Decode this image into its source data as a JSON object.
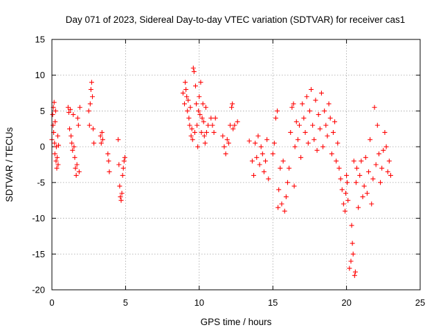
{
  "chart_data": {
    "type": "scatter",
    "title": "Day 071 of 2023, Sidereal Day-to-day VTEC variation (SDTVAR) for receiver cas1",
    "xlabel": "GPS time / hours",
    "ylabel": "SDTVAR / TECUs",
    "xlim": [
      0,
      25
    ],
    "ylim": [
      -20,
      15
    ],
    "x_ticks": [
      0,
      5,
      10,
      15,
      20,
      25
    ],
    "x_tick_labels": [
      "0",
      "5",
      "10",
      "15",
      "20",
      "25"
    ],
    "y_ticks": [
      -20,
      -15,
      -10,
      -5,
      0,
      5,
      10,
      15
    ],
    "y_tick_labels": [
      "-20",
      "-15",
      "-10",
      "-5",
      "0",
      "5",
      "10",
      "15"
    ],
    "grid": true,
    "marker": "+",
    "marker_color": "#ff0000",
    "series": [
      {
        "name": "cas1",
        "points": [
          [
            0.0,
            1.0
          ],
          [
            0.05,
            4.5
          ],
          [
            0.08,
            3.0
          ],
          [
            0.1,
            5.5
          ],
          [
            0.12,
            2.0
          ],
          [
            0.15,
            6.2
          ],
          [
            0.18,
            0.5
          ],
          [
            0.2,
            -1.0
          ],
          [
            0.22,
            3.5
          ],
          [
            0.25,
            5.0
          ],
          [
            0.28,
            -2.0
          ],
          [
            0.3,
            0.0
          ],
          [
            0.33,
            -3.0
          ],
          [
            0.36,
            -1.5
          ],
          [
            0.4,
            1.5
          ],
          [
            0.42,
            -2.5
          ],
          [
            0.45,
            0.2
          ],
          [
            1.1,
            5.5
          ],
          [
            1.15,
            4.8
          ],
          [
            1.2,
            2.5
          ],
          [
            1.25,
            5.2
          ],
          [
            1.3,
            1.5
          ],
          [
            1.35,
            0.5
          ],
          [
            1.4,
            -0.5
          ],
          [
            1.45,
            4.5
          ],
          [
            1.5,
            0.0
          ],
          [
            1.55,
            -1.5
          ],
          [
            1.6,
            -3.0
          ],
          [
            1.65,
            -4.0
          ],
          [
            1.7,
            -2.5
          ],
          [
            1.75,
            4.0
          ],
          [
            1.8,
            3.0
          ],
          [
            1.85,
            -3.5
          ],
          [
            1.9,
            5.5
          ],
          [
            2.5,
            5.0
          ],
          [
            2.55,
            3.0
          ],
          [
            2.6,
            6.0
          ],
          [
            2.65,
            8.0
          ],
          [
            2.7,
            9.0
          ],
          [
            2.75,
            7.0
          ],
          [
            2.8,
            2.5
          ],
          [
            2.85,
            0.5
          ],
          [
            3.3,
            1.5
          ],
          [
            3.35,
            0.5
          ],
          [
            3.4,
            2.0
          ],
          [
            3.45,
            1.0
          ],
          [
            3.8,
            -1.0
          ],
          [
            3.85,
            -2.0
          ],
          [
            3.9,
            -3.5
          ],
          [
            4.5,
            1.0
          ],
          [
            4.55,
            -2.5
          ],
          [
            4.6,
            -5.5
          ],
          [
            4.65,
            -7.0
          ],
          [
            4.7,
            -7.5
          ],
          [
            4.75,
            -6.5
          ],
          [
            4.8,
            -4.0
          ],
          [
            4.85,
            -3.0
          ],
          [
            4.9,
            -2.0
          ],
          [
            4.95,
            -1.5
          ],
          [
            8.9,
            7.5
          ],
          [
            9.0,
            6.0
          ],
          [
            9.05,
            9.0
          ],
          [
            9.1,
            8.0
          ],
          [
            9.15,
            7.0
          ],
          [
            9.2,
            5.0
          ],
          [
            9.25,
            6.5
          ],
          [
            9.3,
            4.0
          ],
          [
            9.35,
            3.0
          ],
          [
            9.4,
            5.5
          ],
          [
            9.45,
            1.5
          ],
          [
            9.5,
            2.5
          ],
          [
            9.55,
            1.0
          ],
          [
            9.6,
            11.0
          ],
          [
            9.65,
            10.5
          ],
          [
            9.7,
            2.0
          ],
          [
            9.75,
            8.5
          ],
          [
            9.8,
            6.0
          ],
          [
            9.85,
            3.0
          ],
          [
            9.9,
            0.0
          ],
          [
            9.95,
            5.0
          ],
          [
            10.0,
            7.0
          ],
          [
            10.05,
            4.5
          ],
          [
            10.1,
            9.0
          ],
          [
            10.15,
            2.0
          ],
          [
            10.2,
            4.0
          ],
          [
            10.25,
            6.0
          ],
          [
            10.3,
            3.5
          ],
          [
            10.35,
            1.5
          ],
          [
            10.4,
            0.5
          ],
          [
            10.45,
            5.5
          ],
          [
            10.5,
            2.0
          ],
          [
            10.6,
            3.0
          ],
          [
            10.8,
            4.0
          ],
          [
            10.9,
            3.0
          ],
          [
            11.0,
            2.0
          ],
          [
            11.1,
            4.0
          ],
          [
            11.6,
            1.5
          ],
          [
            11.7,
            0.0
          ],
          [
            11.8,
            -1.0
          ],
          [
            11.9,
            1.0
          ],
          [
            12.0,
            0.5
          ],
          [
            12.1,
            3.0
          ],
          [
            12.2,
            5.5
          ],
          [
            12.25,
            6.0
          ],
          [
            12.3,
            2.5
          ],
          [
            12.4,
            3.0
          ],
          [
            12.6,
            3.5
          ],
          [
            13.4,
            0.8
          ],
          [
            13.6,
            -2.0
          ],
          [
            13.7,
            -4.0
          ],
          [
            13.8,
            0.5
          ],
          [
            13.9,
            -1.5
          ],
          [
            14.0,
            1.5
          ],
          [
            14.1,
            -2.5
          ],
          [
            14.2,
            0.0
          ],
          [
            14.3,
            -1.0
          ],
          [
            14.4,
            -3.5
          ],
          [
            14.5,
            -2.0
          ],
          [
            14.6,
            1.0
          ],
          [
            14.7,
            -4.5
          ],
          [
            15.0,
            -1.0
          ],
          [
            15.1,
            0.5
          ],
          [
            15.2,
            4.0
          ],
          [
            15.3,
            5.0
          ],
          [
            15.35,
            -8.5
          ],
          [
            15.4,
            -6.0
          ],
          [
            15.5,
            -3.0
          ],
          [
            15.6,
            -8.0
          ],
          [
            15.7,
            -2.0
          ],
          [
            15.8,
            -9.0
          ],
          [
            15.9,
            -7.0
          ],
          [
            16.0,
            -5.0
          ],
          [
            16.1,
            -3.0
          ],
          [
            16.2,
            2.0
          ],
          [
            16.3,
            5.5
          ],
          [
            16.4,
            6.0
          ],
          [
            16.45,
            -5.5
          ],
          [
            16.5,
            0.0
          ],
          [
            16.6,
            3.5
          ],
          [
            16.7,
            1.0
          ],
          [
            16.8,
            3.0
          ],
          [
            16.9,
            -1.5
          ],
          [
            17.0,
            6.0
          ],
          [
            17.1,
            4.0
          ],
          [
            17.2,
            2.0
          ],
          [
            17.3,
            7.0
          ],
          [
            17.4,
            0.5
          ],
          [
            17.5,
            5.0
          ],
          [
            17.6,
            8.0
          ],
          [
            17.7,
            3.0
          ],
          [
            17.8,
            1.0
          ],
          [
            17.9,
            6.5
          ],
          [
            18.0,
            -0.5
          ],
          [
            18.1,
            4.5
          ],
          [
            18.2,
            2.5
          ],
          [
            18.3,
            7.5
          ],
          [
            18.4,
            0.0
          ],
          [
            18.5,
            5.0
          ],
          [
            18.6,
            3.0
          ],
          [
            18.7,
            1.5
          ],
          [
            18.8,
            6.0
          ],
          [
            18.9,
            4.0
          ],
          [
            19.0,
            -1.0
          ],
          [
            19.1,
            2.0
          ],
          [
            19.2,
            3.5
          ],
          [
            19.3,
            -2.0
          ],
          [
            19.4,
            0.5
          ],
          [
            19.5,
            -3.0
          ],
          [
            19.6,
            -4.5
          ],
          [
            19.7,
            -6.0
          ],
          [
            19.8,
            -8.0
          ],
          [
            19.9,
            -9.0
          ],
          [
            19.95,
            -6.5
          ],
          [
            20.0,
            -4.0
          ],
          [
            20.05,
            -5.0
          ],
          [
            20.1,
            -7.5
          ],
          [
            20.2,
            -17.0
          ],
          [
            20.3,
            -16.0
          ],
          [
            20.35,
            -11.0
          ],
          [
            20.4,
            -13.5
          ],
          [
            20.45,
            -15.0
          ],
          [
            20.5,
            -2.0
          ],
          [
            20.55,
            -18.0
          ],
          [
            20.6,
            -17.5
          ],
          [
            20.65,
            -5.0
          ],
          [
            20.7,
            -3.0
          ],
          [
            20.8,
            -8.5
          ],
          [
            20.9,
            -4.0
          ],
          [
            21.0,
            -2.0
          ],
          [
            21.1,
            -7.0
          ],
          [
            21.2,
            -5.5
          ],
          [
            21.3,
            -1.5
          ],
          [
            21.4,
            -6.5
          ],
          [
            21.5,
            -3.5
          ],
          [
            21.6,
            1.0
          ],
          [
            21.7,
            -8.0
          ],
          [
            21.8,
            -4.5
          ],
          [
            21.9,
            5.5
          ],
          [
            22.0,
            -2.5
          ],
          [
            22.1,
            3.0
          ],
          [
            22.2,
            -1.0
          ],
          [
            22.3,
            -5.0
          ],
          [
            22.4,
            -3.0
          ],
          [
            22.5,
            -0.5
          ],
          [
            22.6,
            2.0
          ],
          [
            22.7,
            0.0
          ],
          [
            22.8,
            -3.5
          ],
          [
            22.9,
            -2.0
          ],
          [
            23.0,
            -4.0
          ]
        ]
      }
    ]
  }
}
